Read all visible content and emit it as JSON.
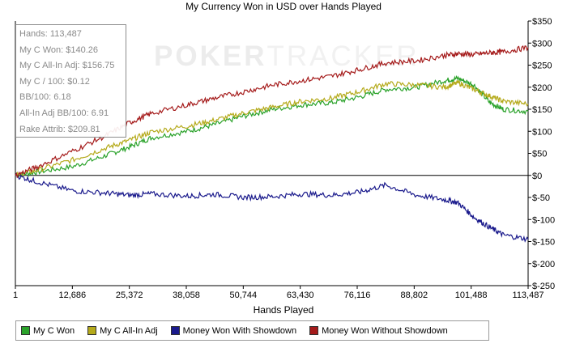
{
  "chart_data": {
    "type": "line",
    "title": "My Currency Won in USD over Hands Played",
    "xlabel": "Hands Played",
    "ylabel": "",
    "xlim": [
      1,
      113487
    ],
    "ylim": [
      -250,
      350
    ],
    "x_ticks": [
      "1",
      "12,686",
      "25,372",
      "38,058",
      "50,744",
      "63,430",
      "76,116",
      "88,802",
      "101,488",
      "113,487"
    ],
    "y_ticks": [
      "$350",
      "$300",
      "$250",
      "$200",
      "$150",
      "$100",
      "$50",
      "$0",
      "$-50",
      "$-100",
      "$-150",
      "$-200",
      "$-250"
    ],
    "y_tick_values": [
      350,
      300,
      250,
      200,
      150,
      100,
      50,
      0,
      -50,
      -100,
      -150,
      -200,
      -250
    ],
    "grid": false,
    "legend_position": "bottom",
    "series": [
      {
        "name": "My C Won",
        "color": "#2aa22a",
        "x": [
          1,
          5000,
          12686,
          20000,
          25372,
          30000,
          38058,
          44000,
          50744,
          57000,
          63430,
          70000,
          76116,
          82000,
          88802,
          95000,
          98000,
          101488,
          105000,
          108000,
          113487
        ],
        "y": [
          0,
          8,
          20,
          45,
          65,
          85,
          100,
          115,
          135,
          150,
          160,
          165,
          178,
          195,
          200,
          215,
          220,
          205,
          165,
          150,
          145
        ]
      },
      {
        "name": "My C All-In Adj",
        "color": "#b5aa1b",
        "x": [
          1,
          5000,
          12686,
          20000,
          25372,
          30000,
          38058,
          44000,
          50744,
          57000,
          63430,
          70000,
          76116,
          82000,
          88802,
          95000,
          98000,
          101488,
          105000,
          108000,
          113487
        ],
        "y": [
          0,
          12,
          35,
          62,
          80,
          98,
          112,
          125,
          142,
          155,
          168,
          175,
          190,
          208,
          205,
          200,
          210,
          195,
          180,
          168,
          162
        ]
      },
      {
        "name": "Money Won With Showdown",
        "color": "#1a1a8c",
        "x": [
          1,
          5000,
          12686,
          20000,
          25372,
          30000,
          38058,
          44000,
          50744,
          57000,
          63430,
          70000,
          76116,
          82000,
          88802,
          95000,
          98000,
          101488,
          105000,
          108000,
          113487
        ],
        "y": [
          0,
          -15,
          -35,
          -40,
          -45,
          -42,
          -47,
          -43,
          -50,
          -48,
          -42,
          -45,
          -38,
          -22,
          -45,
          -55,
          -62,
          -95,
          -118,
          -135,
          -145
        ]
      },
      {
        "name": "Money Won Without Showdown",
        "color": "#a51b1b",
        "x": [
          1,
          5000,
          12686,
          20000,
          25372,
          30000,
          38058,
          44000,
          50744,
          57000,
          63430,
          70000,
          76116,
          82000,
          88802,
          95000,
          98000,
          101488,
          105000,
          108000,
          113487
        ],
        "y": [
          0,
          20,
          55,
          90,
          120,
          140,
          160,
          175,
          190,
          205,
          215,
          225,
          240,
          255,
          260,
          272,
          276,
          274,
          278,
          280,
          290
        ]
      }
    ]
  },
  "stats": [
    "Hands: 113,487",
    "My C Won: $140.26",
    "My C All-In Adj: $156.75",
    "My C / 100: $0.12",
    "BB/100: 6.18",
    "All-In Adj BB/100: 6.91",
    "Rake Attrib: $209.81"
  ],
  "watermark": {
    "bold": "POKER",
    "light": "TRACKER"
  },
  "legend": [
    {
      "label": "My C Won",
      "color": "#2aa22a"
    },
    {
      "label": "My C All-In Adj",
      "color": "#b5aa1b"
    },
    {
      "label": "Money Won With Showdown",
      "color": "#1a1a8c"
    },
    {
      "label": "Money Won Without Showdown",
      "color": "#a51b1b"
    }
  ]
}
